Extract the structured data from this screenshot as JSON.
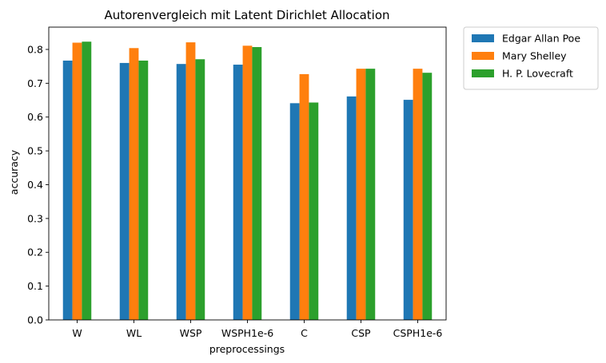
{
  "chart_data": {
    "type": "bar",
    "title": "Autorenvergleich mit Latent Dirichlet Allocation",
    "xlabel": "preprocessings",
    "ylabel": "accuracy",
    "categories": [
      "W",
      "WL",
      "WSP",
      "WSPH1e-6",
      "C",
      "CSP",
      "CSPH1e-6"
    ],
    "series": [
      {
        "name": "Edgar Allan Poe",
        "color": "#1f77b4",
        "values": [
          0.767,
          0.76,
          0.757,
          0.755,
          0.641,
          0.661,
          0.651
        ]
      },
      {
        "name": "Mary Shelley",
        "color": "#ff7f0e",
        "values": [
          0.82,
          0.804,
          0.821,
          0.811,
          0.727,
          0.743,
          0.743
        ]
      },
      {
        "name": "H. P. Lovecraft",
        "color": "#2ca02c",
        "values": [
          0.823,
          0.767,
          0.771,
          0.807,
          0.643,
          0.743,
          0.731
        ]
      }
    ],
    "ylim": [
      0,
      0.866
    ],
    "yticks": [
      0.0,
      0.1,
      0.2,
      0.3,
      0.4,
      0.5,
      0.6,
      0.7,
      0.8
    ],
    "ytick_labels": [
      "0.0",
      "0.1",
      "0.2",
      "0.3",
      "0.4",
      "0.5",
      "0.6",
      "0.7",
      "0.8"
    ],
    "grid": false,
    "legend_position": "outside-top-right"
  }
}
